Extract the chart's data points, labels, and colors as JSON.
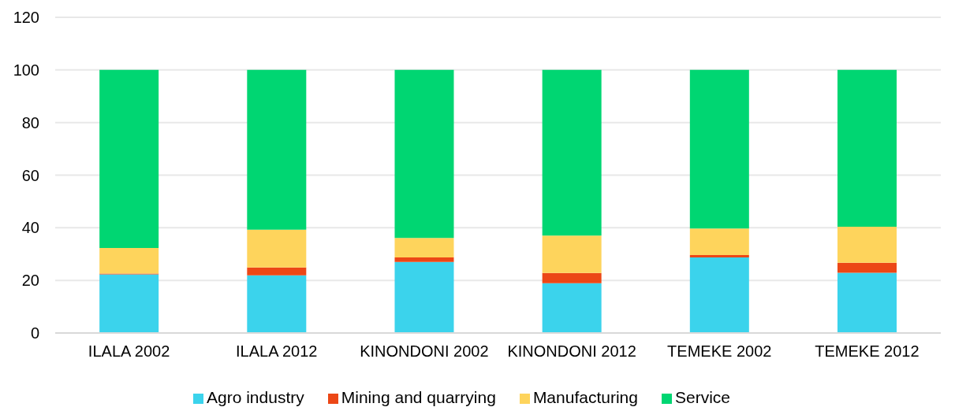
{
  "chart_data": {
    "type": "bar",
    "stacked": true,
    "categories": [
      "ILALA 2002",
      "ILALA 2012",
      "KINONDONI 2002",
      "KINONDONI 2012",
      "TEMEKE 2002",
      "TEMEKE 2012"
    ],
    "series": [
      {
        "name": "Agro industry",
        "color": "#3bd3ec",
        "values": [
          22.3,
          21.9,
          27.0,
          18.9,
          28.7,
          22.9
        ]
      },
      {
        "name": "Mining and quarrying",
        "color": "#ec4716",
        "values": [
          0.3,
          3.0,
          1.7,
          3.9,
          0.9,
          3.8
        ]
      },
      {
        "name": "Manufacturing",
        "color": "#fed45c",
        "values": [
          9.7,
          14.4,
          7.4,
          14.2,
          10.1,
          13.7
        ]
      },
      {
        "name": "Service",
        "color": "#00d672",
        "values": [
          67.7,
          60.7,
          63.9,
          63.0,
          60.3,
          59.6
        ]
      }
    ],
    "ylim": [
      0,
      120
    ],
    "yticks": [
      0,
      20,
      40,
      60,
      80,
      100,
      120
    ],
    "grid": "y",
    "legend": "bottom"
  }
}
